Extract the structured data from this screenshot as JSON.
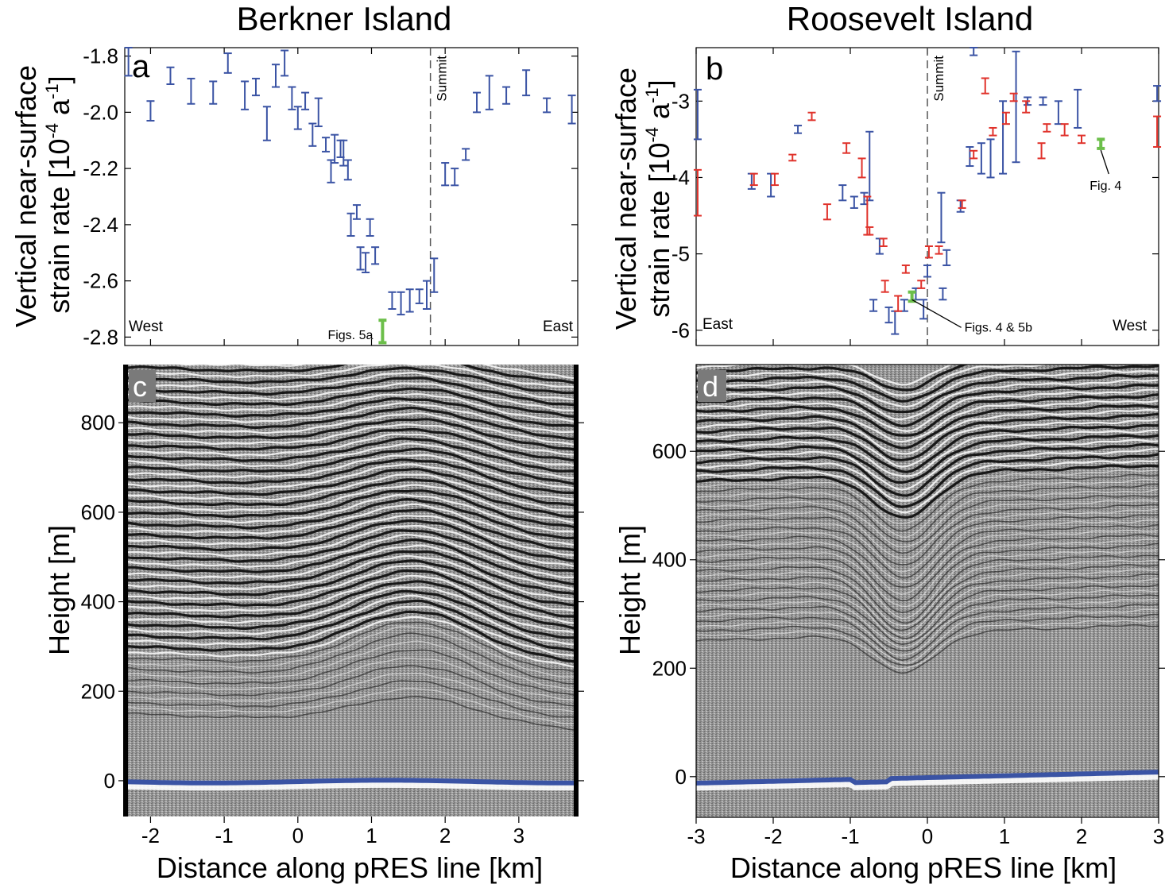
{
  "titles": {
    "left": "Berkner Island",
    "right": "Roosevelt Island"
  },
  "colors": {
    "blue": "#3a53a4",
    "red": "#e0322b",
    "green": "#6cbf4a",
    "gray": "#888888",
    "bed": "#3a53a4"
  },
  "chart_data": [
    {
      "panel": "a",
      "type": "scatter",
      "subtype": "error-bars",
      "ylabel_line1": "Vertical near-surface",
      "ylabel_line2": "strain rate [10",
      "ylabel_sup1": "-4",
      "ylabel_mid": " a",
      "ylabel_sup2": "-1",
      "ylabel_end": "]",
      "xlim": [
        -2.35,
        3.8
      ],
      "ylim": [
        -2.83,
        -1.77
      ],
      "yticks": [
        -2.8,
        -2.6,
        -2.4,
        -2.2,
        -2.0,
        -1.8
      ],
      "ytick_labels": [
        "-2.8",
        "-2.6",
        "-2.4",
        "-2.2",
        "-2.0",
        "-1.8"
      ],
      "xticks": [
        -2,
        -1,
        0,
        1,
        2,
        3
      ],
      "summit_x": 1.8,
      "summit_label": "Summit",
      "left_label": "West",
      "right_label": "East",
      "annotation": {
        "text": "Figs. 5a",
        "x": 1.15
      },
      "series": [
        {
          "color": "blue",
          "points": [
            {
              "x": -2.3,
              "lo": -1.87,
              "hi": -1.77
            },
            {
              "x": -2.0,
              "lo": -2.03,
              "hi": -1.96
            },
            {
              "x": -1.73,
              "lo": -1.9,
              "hi": -1.84
            },
            {
              "x": -1.45,
              "lo": -1.97,
              "hi": -1.88
            },
            {
              "x": -1.15,
              "lo": -1.97,
              "hi": -1.89
            },
            {
              "x": -0.95,
              "lo": -1.86,
              "hi": -1.79
            },
            {
              "x": -0.72,
              "lo": -1.99,
              "hi": -1.89
            },
            {
              "x": -0.57,
              "lo": -1.94,
              "hi": -1.88
            },
            {
              "x": -0.42,
              "lo": -2.1,
              "hi": -1.98
            },
            {
              "x": -0.3,
              "lo": -1.91,
              "hi": -1.83
            },
            {
              "x": -0.18,
              "lo": -1.87,
              "hi": -1.78
            },
            {
              "x": -0.08,
              "lo": -1.99,
              "hi": -1.91
            },
            {
              "x": 0.0,
              "lo": -2.06,
              "hi": -1.98
            },
            {
              "x": 0.1,
              "lo": -1.99,
              "hi": -1.93
            },
            {
              "x": 0.2,
              "lo": -2.12,
              "hi": -2.04
            },
            {
              "x": 0.28,
              "lo": -2.05,
              "hi": -1.95
            },
            {
              "x": 0.38,
              "lo": -2.14,
              "hi": -2.09
            },
            {
              "x": 0.45,
              "lo": -2.25,
              "hi": -2.17
            },
            {
              "x": 0.5,
              "lo": -2.18,
              "hi": -2.08
            },
            {
              "x": 0.58,
              "lo": -2.16,
              "hi": -2.1
            },
            {
              "x": 0.62,
              "lo": -2.19,
              "hi": -2.1
            },
            {
              "x": 0.68,
              "lo": -2.24,
              "hi": -2.17
            },
            {
              "x": 0.72,
              "lo": -2.44,
              "hi": -2.36
            },
            {
              "x": 0.8,
              "lo": -2.38,
              "hi": -2.33
            },
            {
              "x": 0.85,
              "lo": -2.56,
              "hi": -2.48
            },
            {
              "x": 0.92,
              "lo": -2.57,
              "hi": -2.5
            },
            {
              "x": 0.98,
              "lo": -2.44,
              "hi": -2.38
            },
            {
              "x": 1.05,
              "lo": -2.54,
              "hi": -2.48
            },
            {
              "x": 1.28,
              "lo": -2.7,
              "hi": -2.64
            },
            {
              "x": 1.4,
              "lo": -2.72,
              "hi": -2.64
            },
            {
              "x": 1.52,
              "lo": -2.71,
              "hi": -2.63
            },
            {
              "x": 1.65,
              "lo": -2.68,
              "hi": -2.63
            },
            {
              "x": 1.75,
              "lo": -2.7,
              "hi": -2.6
            },
            {
              "x": 1.85,
              "lo": -2.64,
              "hi": -2.52
            },
            {
              "x": 2.0,
              "lo": -2.26,
              "hi": -2.18
            },
            {
              "x": 2.13,
              "lo": -2.26,
              "hi": -2.2
            },
            {
              "x": 2.28,
              "lo": -2.17,
              "hi": -2.13
            },
            {
              "x": 2.43,
              "lo": -2.0,
              "hi": -1.93
            },
            {
              "x": 2.6,
              "lo": -1.99,
              "hi": -1.87
            },
            {
              "x": 2.83,
              "lo": -1.97,
              "hi": -1.91
            },
            {
              "x": 3.1,
              "lo": -1.94,
              "hi": -1.85
            },
            {
              "x": 3.38,
              "lo": -2.0,
              "hi": -1.95
            },
            {
              "x": 3.72,
              "lo": -2.04,
              "hi": -1.94
            }
          ]
        },
        {
          "color": "green",
          "points": [
            {
              "x": 1.15,
              "lo": -2.82,
              "hi": -2.74
            }
          ]
        }
      ]
    },
    {
      "panel": "b",
      "type": "scatter",
      "subtype": "error-bars",
      "ylabel_line1": "Vertical near-surface",
      "ylabel_line2": "strain rate [10",
      "ylabel_sup1": "-4",
      "ylabel_mid": " a",
      "ylabel_sup2": "-1",
      "ylabel_end": "]",
      "xlim": [
        -3,
        3
      ],
      "ylim": [
        -6.2,
        -2.3
      ],
      "yticks": [
        -6,
        -5,
        -4,
        -3
      ],
      "ytick_labels": [
        "-6",
        "-5",
        "-4",
        "-3"
      ],
      "xticks": [
        -3,
        -2,
        -1,
        0,
        1,
        2,
        3
      ],
      "summit_x": 0,
      "summit_label": "Summit",
      "left_label": "East",
      "right_label": "West",
      "annotations": [
        {
          "text": "Figs. 4 & 5b",
          "x": -0.2,
          "y": -5.6
        },
        {
          "text": "Fig. 4",
          "x": 2.25,
          "y": -3.6
        }
      ],
      "series": [
        {
          "color": "blue",
          "points": [
            {
              "x": -2.98,
              "lo": -3.5,
              "hi": -2.85
            },
            {
              "x": -2.28,
              "lo": -4.15,
              "hi": -3.95
            },
            {
              "x": -2.03,
              "lo": -4.25,
              "hi": -3.95
            },
            {
              "x": -1.68,
              "lo": -3.42,
              "hi": -3.32
            },
            {
              "x": -1.1,
              "lo": -4.3,
              "hi": -4.1
            },
            {
              "x": -0.95,
              "lo": -4.4,
              "hi": -4.25
            },
            {
              "x": -0.75,
              "lo": -4.3,
              "hi": -3.4
            },
            {
              "x": -0.82,
              "lo": -4.35,
              "hi": -4.2
            },
            {
              "x": -0.62,
              "lo": -5.0,
              "hi": -4.8
            },
            {
              "x": -0.7,
              "lo": -5.75,
              "hi": -5.6
            },
            {
              "x": -0.5,
              "lo": -5.9,
              "hi": -5.7
            },
            {
              "x": -0.42,
              "lo": -6.05,
              "hi": -5.75
            },
            {
              "x": -0.3,
              "lo": -5.75,
              "hi": -5.6
            },
            {
              "x": -0.15,
              "lo": -5.6,
              "hi": -5.45
            },
            {
              "x": -0.05,
              "lo": -5.85,
              "hi": -5.6
            },
            {
              "x": 0.0,
              "lo": -5.3,
              "hi": -5.15
            },
            {
              "x": 0.25,
              "lo": -5.15,
              "hi": -4.95
            },
            {
              "x": 0.2,
              "lo": -5.6,
              "hi": -5.45
            },
            {
              "x": 0.18,
              "lo": -4.85,
              "hi": -4.2
            },
            {
              "x": 0.43,
              "lo": -4.45,
              "hi": -4.3
            },
            {
              "x": 0.55,
              "lo": -3.85,
              "hi": -3.6
            },
            {
              "x": 0.6,
              "lo": -2.4,
              "hi": -2.3
            },
            {
              "x": 0.7,
              "lo": -3.95,
              "hi": -3.55
            },
            {
              "x": 0.82,
              "lo": -4.0,
              "hi": -3.5
            },
            {
              "x": 0.98,
              "lo": -3.95,
              "hi": -3.0
            },
            {
              "x": 1.15,
              "lo": -3.8,
              "hi": -2.35
            },
            {
              "x": 1.3,
              "lo": -3.05,
              "hi": -2.95
            },
            {
              "x": 1.5,
              "lo": -3.05,
              "hi": -2.95
            },
            {
              "x": 1.7,
              "lo": -3.3,
              "hi": -3.0
            },
            {
              "x": 1.95,
              "lo": -3.35,
              "hi": -2.85
            },
            {
              "x": 2.98,
              "lo": -3.0,
              "hi": -2.8
            }
          ]
        },
        {
          "color": "red",
          "points": [
            {
              "x": -2.98,
              "lo": -4.5,
              "hi": -3.9
            },
            {
              "x": -2.25,
              "lo": -4.1,
              "hi": -3.95
            },
            {
              "x": -1.98,
              "lo": -4.1,
              "hi": -3.95
            },
            {
              "x": -1.75,
              "lo": -3.78,
              "hi": -3.7
            },
            {
              "x": -1.5,
              "lo": -3.25,
              "hi": -3.15
            },
            {
              "x": -1.3,
              "lo": -4.55,
              "hi": -4.35
            },
            {
              "x": -1.05,
              "lo": -3.68,
              "hi": -3.55
            },
            {
              "x": -0.85,
              "lo": -4.0,
              "hi": -3.75
            },
            {
              "x": -0.75,
              "lo": -4.75,
              "hi": -4.65
            },
            {
              "x": -0.78,
              "lo": -4.75,
              "hi": -4.25
            },
            {
              "x": -0.57,
              "lo": -4.9,
              "hi": -4.8
            },
            {
              "x": -0.28,
              "lo": -5.25,
              "hi": -5.15
            },
            {
              "x": -0.55,
              "lo": -5.5,
              "hi": -5.35
            },
            {
              "x": -0.38,
              "lo": -5.75,
              "hi": -5.55
            },
            {
              "x": -0.08,
              "lo": -5.45,
              "hi": -5.35
            },
            {
              "x": 0.02,
              "lo": -5.05,
              "hi": -4.9
            },
            {
              "x": 0.15,
              "lo": -5.0,
              "hi": -4.9
            },
            {
              "x": 0.45,
              "lo": -4.4,
              "hi": -4.3
            },
            {
              "x": 0.6,
              "lo": -3.75,
              "hi": -3.65
            },
            {
              "x": 0.75,
              "lo": -2.9,
              "hi": -2.7
            },
            {
              "x": 0.85,
              "lo": -3.45,
              "hi": -3.35
            },
            {
              "x": 1.02,
              "lo": -3.3,
              "hi": -3.15
            },
            {
              "x": 1.12,
              "lo": -3.0,
              "hi": -2.9
            },
            {
              "x": 1.28,
              "lo": -3.15,
              "hi": -3.0
            },
            {
              "x": 1.48,
              "lo": -3.75,
              "hi": -3.55
            },
            {
              "x": 1.55,
              "lo": -3.4,
              "hi": -3.3
            },
            {
              "x": 1.78,
              "lo": -3.45,
              "hi": -3.3
            },
            {
              "x": 2.0,
              "lo": -3.55,
              "hi": -3.45
            },
            {
              "x": 2.98,
              "lo": -3.6,
              "hi": -3.2
            }
          ]
        },
        {
          "color": "green",
          "points": [
            {
              "x": -0.2,
              "lo": -5.62,
              "hi": -5.5
            },
            {
              "x": 2.25,
              "lo": -3.62,
              "hi": -3.5
            }
          ]
        }
      ]
    },
    {
      "panel": "c",
      "type": "heatmap",
      "description_kind": "radargram",
      "ylabel": "Height [m]",
      "xlabel": "Distance along pRES line [km]",
      "xlim": [
        -2.35,
        3.8
      ],
      "ylim": [
        -80,
        930
      ],
      "yticks": [
        0,
        200,
        400,
        600,
        800
      ],
      "ytick_labels": [
        "0",
        "200",
        "400",
        "600",
        "800"
      ],
      "xticks": [
        -2,
        -1,
        0,
        1,
        2,
        3
      ],
      "xtick_labels": [
        "-2",
        "-1",
        "0",
        "1",
        "2",
        "3"
      ],
      "dome_center": 1.6
    },
    {
      "panel": "d",
      "type": "heatmap",
      "description_kind": "radargram",
      "ylabel": "Height [m]",
      "xlabel": "Distance along pRES line [km]",
      "xlim": [
        -3,
        3
      ],
      "ylim": [
        -75,
        760
      ],
      "yticks": [
        0,
        200,
        400,
        600
      ],
      "ytick_labels": [
        "0",
        "200",
        "400",
        "600"
      ],
      "xticks": [
        -3,
        -2,
        -1,
        0,
        1,
        2,
        3
      ],
      "xtick_labels": [
        "-3",
        "-2",
        "-1",
        "0",
        "1",
        "2",
        "3"
      ],
      "dome_center": -0.3
    }
  ]
}
